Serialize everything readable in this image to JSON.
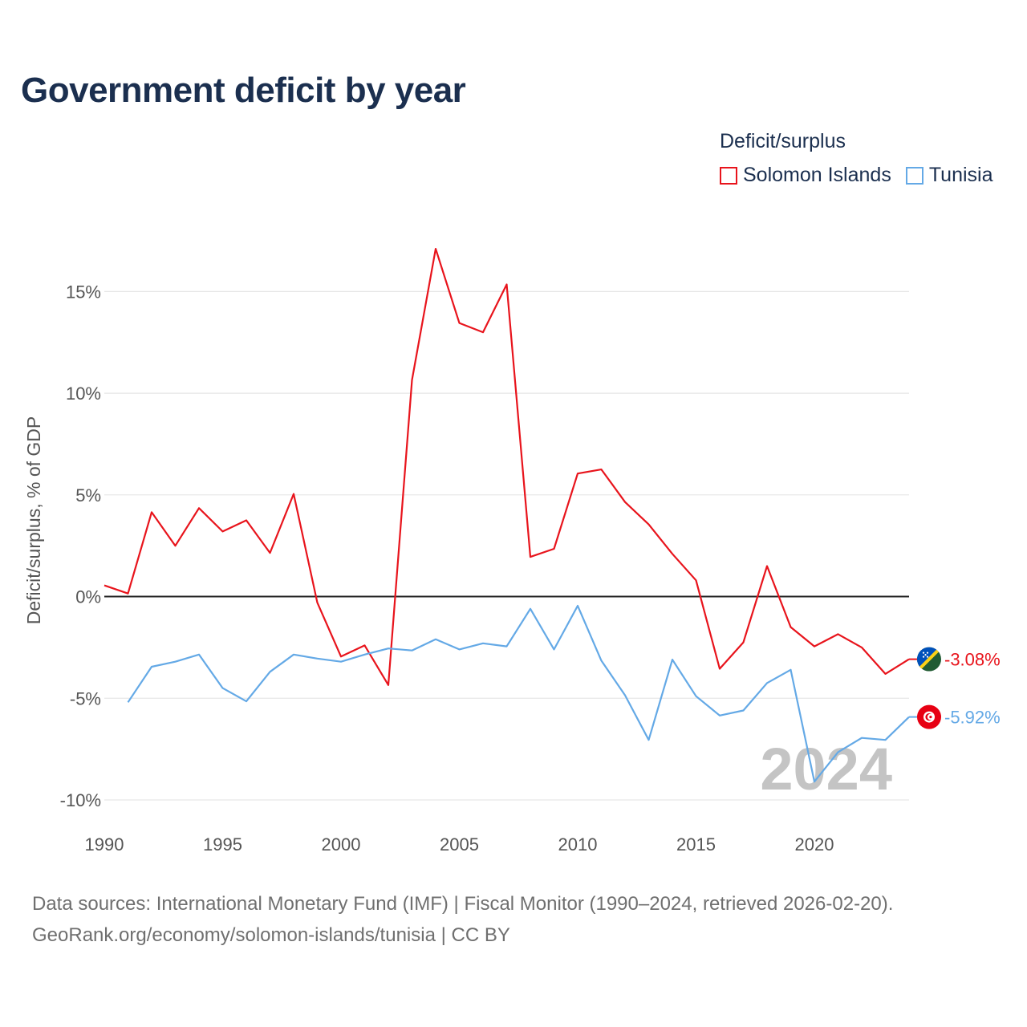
{
  "title": "Government deficit by year",
  "legend": {
    "title": "Deficit/surplus",
    "items": [
      {
        "name": "Solomon Islands",
        "color": "#e8141c"
      },
      {
        "name": "Tunisia",
        "color": "#64a9e6"
      }
    ]
  },
  "footer": {
    "line1": "Data sources: International Monetary Fund (IMF) | Fiscal Monitor (1990–2024, retrieved 2026-02-20).",
    "line2": "GeoRank.org/economy/solomon-islands/tunisia | CC BY"
  },
  "year_mark": "2024",
  "chart_data": {
    "type": "line",
    "title": "Government deficit by year",
    "xlabel": "",
    "ylabel": "Deficit/surplus, % of GDP",
    "xlim": [
      1990,
      2024
    ],
    "ylim": [
      -10,
      17.5
    ],
    "x_ticks": [
      1990,
      1995,
      2000,
      2005,
      2010,
      2015,
      2020
    ],
    "x_tick_labels": [
      "1990",
      "1995",
      "2000",
      "2005",
      "2010",
      "2015",
      "2020"
    ],
    "y_ticks": [
      -10,
      -5,
      0,
      5,
      10,
      15
    ],
    "y_tick_labels": [
      "-10%",
      "-5%",
      "0%",
      "5%",
      "10%",
      "15%"
    ],
    "grid": true,
    "legend_position": "top-right",
    "series": [
      {
        "name": "Solomon Islands",
        "color": "#e8141c",
        "end_label": "-3.08%",
        "points": [
          [
            1990,
            0.55
          ],
          [
            1991,
            0.15
          ],
          [
            1992,
            4.15
          ],
          [
            1993,
            2.5
          ],
          [
            1994,
            4.35
          ],
          [
            1995,
            3.2
          ],
          [
            1996,
            3.75
          ],
          [
            1997,
            2.15
          ],
          [
            1998,
            5.05
          ],
          [
            1999,
            -0.3
          ],
          [
            2000,
            -2.95
          ],
          [
            2001,
            -2.4
          ],
          [
            2002,
            -4.35
          ],
          [
            2003,
            10.65
          ],
          [
            2004,
            17.1
          ],
          [
            2005,
            13.45
          ],
          [
            2006,
            13.0
          ],
          [
            2007,
            15.35
          ],
          [
            2008,
            1.95
          ],
          [
            2009,
            2.35
          ],
          [
            2010,
            6.05
          ],
          [
            2011,
            6.25
          ],
          [
            2012,
            4.65
          ],
          [
            2013,
            3.55
          ],
          [
            2014,
            2.1
          ],
          [
            2015,
            0.8
          ],
          [
            2016,
            -3.55
          ],
          [
            2017,
            -2.25
          ],
          [
            2018,
            1.5
          ],
          [
            2019,
            -1.5
          ],
          [
            2020,
            -2.45
          ],
          [
            2021,
            -1.85
          ],
          [
            2022,
            -2.5
          ],
          [
            2023,
            -3.8
          ],
          [
            2024,
            -3.08
          ]
        ]
      },
      {
        "name": "Tunisia",
        "color": "#64a9e6",
        "end_label": "-5.92%",
        "points": [
          [
            1991,
            -5.2
          ],
          [
            1992,
            -3.45
          ],
          [
            1993,
            -3.2
          ],
          [
            1994,
            -2.85
          ],
          [
            1995,
            -4.5
          ],
          [
            1996,
            -5.15
          ],
          [
            1997,
            -3.7
          ],
          [
            1998,
            -2.85
          ],
          [
            1999,
            -3.05
          ],
          [
            2000,
            -3.2
          ],
          [
            2001,
            -2.85
          ],
          [
            2002,
            -2.55
          ],
          [
            2003,
            -2.65
          ],
          [
            2004,
            -2.1
          ],
          [
            2005,
            -2.6
          ],
          [
            2006,
            -2.3
          ],
          [
            2007,
            -2.45
          ],
          [
            2008,
            -0.6
          ],
          [
            2009,
            -2.6
          ],
          [
            2010,
            -0.45
          ],
          [
            2011,
            -3.15
          ],
          [
            2012,
            -4.85
          ],
          [
            2013,
            -7.05
          ],
          [
            2014,
            -3.1
          ],
          [
            2015,
            -4.9
          ],
          [
            2016,
            -5.85
          ],
          [
            2017,
            -5.6
          ],
          [
            2018,
            -4.25
          ],
          [
            2019,
            -3.6
          ],
          [
            2020,
            -9.1
          ],
          [
            2021,
            -7.65
          ],
          [
            2022,
            -6.95
          ],
          [
            2023,
            -7.05
          ],
          [
            2024,
            -5.92
          ]
        ]
      }
    ]
  }
}
